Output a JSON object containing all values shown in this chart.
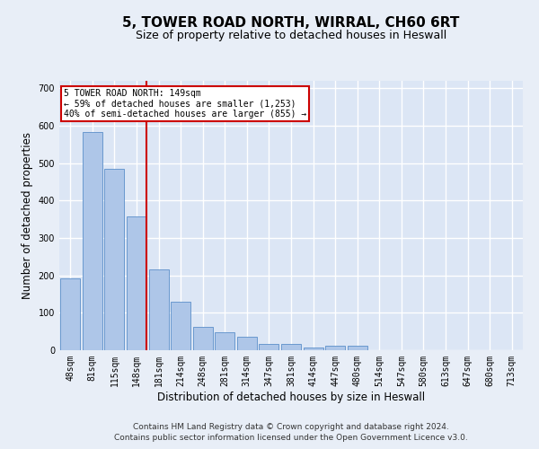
{
  "title": "5, TOWER ROAD NORTH, WIRRAL, CH60 6RT",
  "subtitle": "Size of property relative to detached houses in Heswall",
  "xlabel": "Distribution of detached houses by size in Heswall",
  "ylabel": "Number of detached properties",
  "categories": [
    "48sqm",
    "81sqm",
    "115sqm",
    "148sqm",
    "181sqm",
    "214sqm",
    "248sqm",
    "281sqm",
    "314sqm",
    "347sqm",
    "381sqm",
    "414sqm",
    "447sqm",
    "480sqm",
    "514sqm",
    "547sqm",
    "580sqm",
    "613sqm",
    "647sqm",
    "680sqm",
    "713sqm"
  ],
  "values": [
    193,
    583,
    485,
    357,
    215,
    130,
    63,
    48,
    36,
    17,
    17,
    7,
    11,
    11,
    0,
    0,
    0,
    0,
    0,
    0,
    0
  ],
  "bar_color": "#aec6e8",
  "bar_edge_color": "#5b8fc9",
  "marker_line_color": "#cc0000",
  "annotation_line1": "5 TOWER ROAD NORTH: 149sqm",
  "annotation_line2": "← 59% of detached houses are smaller (1,253)",
  "annotation_line3": "40% of semi-detached houses are larger (855) →",
  "annotation_box_color": "#cc0000",
  "ylim": [
    0,
    720
  ],
  "yticks": [
    0,
    100,
    200,
    300,
    400,
    500,
    600,
    700
  ],
  "footer1": "Contains HM Land Registry data © Crown copyright and database right 2024.",
  "footer2": "Contains public sector information licensed under the Open Government Licence v3.0.",
  "background_color": "#e8eef7",
  "plot_bg_color": "#dce6f5",
  "grid_color": "#ffffff",
  "title_fontsize": 11,
  "subtitle_fontsize": 9,
  "xlabel_fontsize": 8.5,
  "ylabel_fontsize": 8.5,
  "tick_fontsize": 7,
  "footer_fontsize": 6.5
}
